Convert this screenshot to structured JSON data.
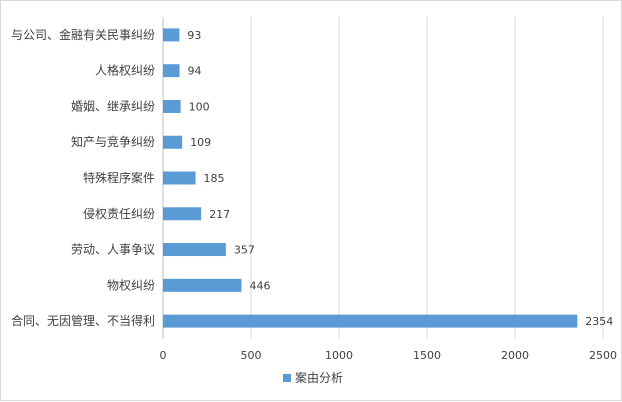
{
  "chart_data": {
    "type": "bar",
    "orientation": "horizontal",
    "categories": [
      "与公司、金融有关民事纠纷",
      "人格权纠纷",
      "婚姻、继承纠纷",
      "知产与竞争纠纷",
      "特殊程序案件",
      "侵权责任纠纷",
      "劳动、人事争议",
      "物权纠纷",
      "合同、无因管理、不当得利"
    ],
    "series": [
      {
        "name": "案由分析",
        "values": [
          93,
          94,
          100,
          109,
          185,
          217,
          357,
          446,
          2354
        ],
        "color": "#5b9bd5"
      }
    ],
    "xlim": [
      0,
      2500
    ],
    "xticks": [
      0,
      500,
      1000,
      1500,
      2000,
      2500
    ],
    "xtick_labels": [
      "0",
      "500",
      "1000",
      "1500",
      "2000",
      "2500"
    ],
    "grid": "vertical",
    "legend": "bottom",
    "data_labels": true
  }
}
